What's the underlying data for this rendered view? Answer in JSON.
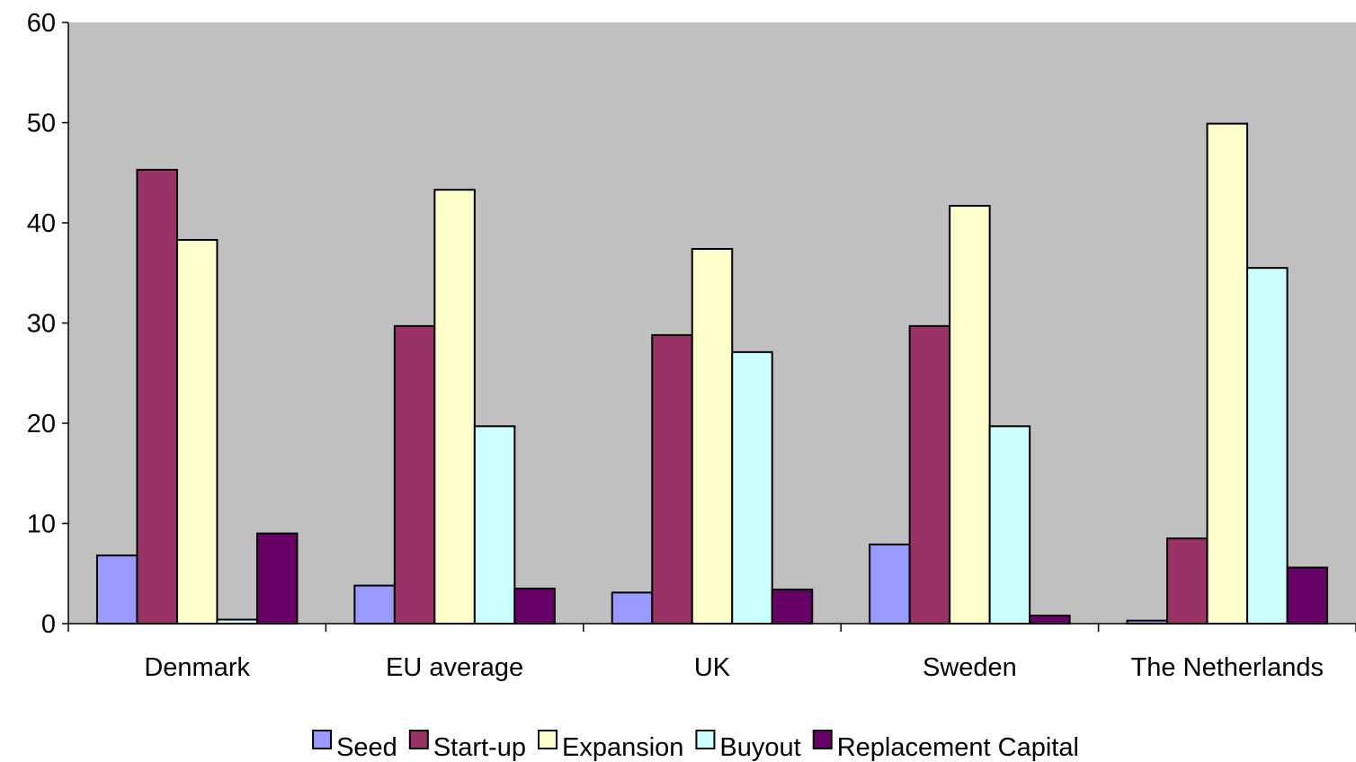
{
  "chart_data": {
    "type": "bar",
    "categories": [
      "Denmark",
      "EU average",
      "UK",
      "Sweden",
      "The Netherlands"
    ],
    "series": [
      {
        "name": "Seed",
        "values": [
          6.8,
          3.8,
          3.1,
          7.9,
          0.3
        ],
        "color": "#9999ff"
      },
      {
        "name": "Start-up",
        "values": [
          45.3,
          29.7,
          28.8,
          29.7,
          8.5
        ],
        "color": "#993366"
      },
      {
        "name": "Expansion",
        "values": [
          38.3,
          43.3,
          37.4,
          41.7,
          49.9
        ],
        "color": "#ffffcc"
      },
      {
        "name": "Buyout",
        "values": [
          0.4,
          19.7,
          27.1,
          19.7,
          35.5
        ],
        "color": "#ccffff"
      },
      {
        "name": "Replacement Capital",
        "values": [
          9.0,
          3.5,
          3.4,
          0.8,
          5.6
        ],
        "color": "#660066"
      }
    ],
    "yticks": [
      "0",
      "10",
      "20",
      "30",
      "40",
      "50",
      "60"
    ],
    "ylim": [
      0,
      60
    ],
    "plot_background": "#c0c0c0",
    "grid": false,
    "legend_position": "bottom",
    "title": "",
    "xlabel": "",
    "ylabel": ""
  }
}
